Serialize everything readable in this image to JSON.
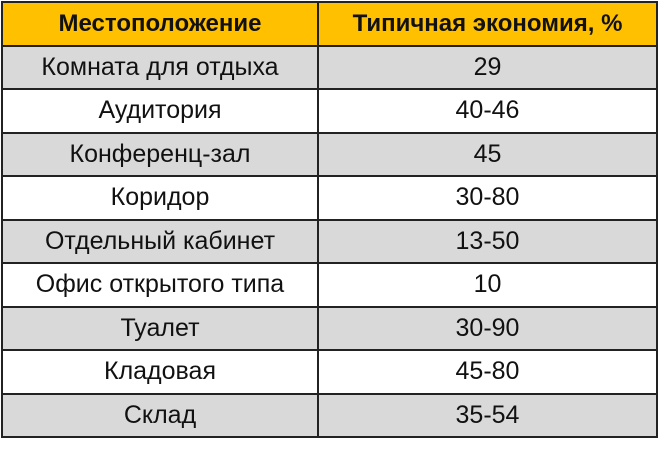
{
  "colors": {
    "header": "#ffc000",
    "row_alt": "#d9d9d9",
    "row": "#ffffff"
  },
  "table": {
    "headers": [
      "Местоположение",
      "Типичная экономия, %"
    ],
    "rows": [
      [
        "Комната для отдыха",
        "29"
      ],
      [
        "Аудитория",
        "40-46"
      ],
      [
        "Конференц-зал",
        "45"
      ],
      [
        "Коридор",
        "30-80"
      ],
      [
        "Отдельный кабинет",
        "13-50"
      ],
      [
        "Офис открытого типа",
        "10"
      ],
      [
        "Туалет",
        "30-90"
      ],
      [
        "Кладовая",
        "45-80"
      ],
      [
        "Склад",
        "35-54"
      ]
    ]
  }
}
